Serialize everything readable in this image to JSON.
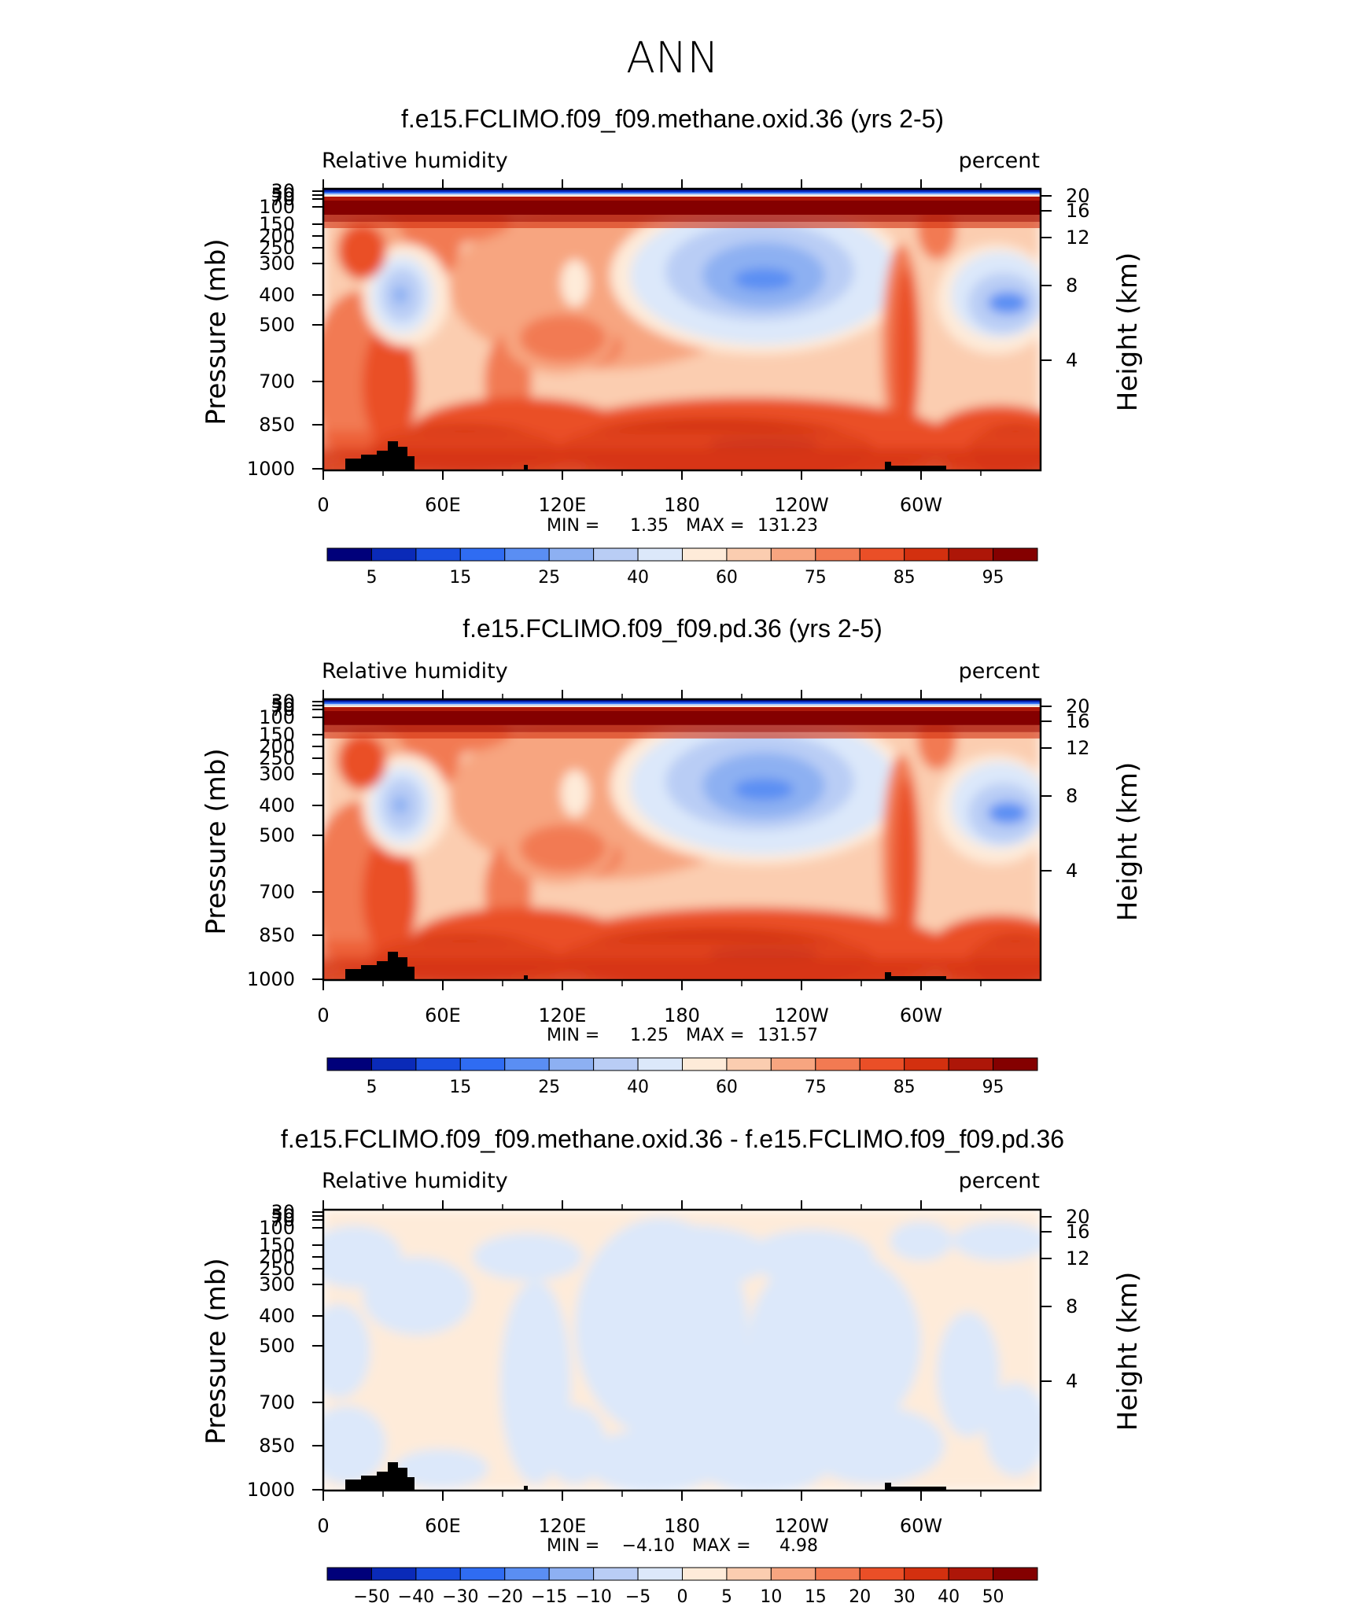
{
  "main_title": "ANN",
  "chart_data": [
    {
      "type": "contour",
      "title": "f.e15.FCLIMO.f09_f09.methane.oxid.36 (yrs 2-5)",
      "variable": "Relative humidity",
      "units": "percent",
      "ylabel": "Pressure (mb)",
      "y2label": "Height (km)",
      "xticks": [
        "0",
        "60E",
        "120E",
        "180",
        "120W",
        "60W"
      ],
      "yticks": [
        "30",
        "50",
        "70",
        "100",
        "150",
        "200",
        "250",
        "300",
        "400",
        "500",
        "700",
        "850",
        "1000"
      ],
      "y2ticks": [
        "20",
        "16",
        "12",
        "8",
        "4"
      ],
      "stats": {
        "min_label": "MIN =",
        "min": "1.35",
        "max_label": "MAX =",
        "max": "131.23"
      },
      "colorbar_labels": [
        "5",
        "15",
        "25",
        "40",
        "60",
        "75",
        "85",
        "95"
      ]
    },
    {
      "type": "contour",
      "title": "f.e15.FCLIMO.f09_f09.pd.36 (yrs 2-5)",
      "variable": "Relative humidity",
      "units": "percent",
      "ylabel": "Pressure (mb)",
      "y2label": "Height (km)",
      "xticks": [
        "0",
        "60E",
        "120E",
        "180",
        "120W",
        "60W"
      ],
      "yticks": [
        "30",
        "50",
        "70",
        "100",
        "150",
        "200",
        "250",
        "300",
        "400",
        "500",
        "700",
        "850",
        "1000"
      ],
      "y2ticks": [
        "20",
        "16",
        "12",
        "8",
        "4"
      ],
      "stats": {
        "min_label": "MIN =",
        "min": "1.25",
        "max_label": "MAX =",
        "max": "131.57"
      },
      "colorbar_labels": [
        "5",
        "15",
        "25",
        "40",
        "60",
        "75",
        "85",
        "95"
      ]
    },
    {
      "type": "contour",
      "title": "f.e15.FCLIMO.f09_f09.methane.oxid.36 - f.e15.FCLIMO.f09_f09.pd.36",
      "variable": "Relative humidity",
      "units": "percent",
      "ylabel": "Pressure (mb)",
      "y2label": "Height (km)",
      "xticks": [
        "0",
        "60E",
        "120E",
        "180",
        "120W",
        "60W"
      ],
      "yticks": [
        "30",
        "50",
        "70",
        "100",
        "150",
        "200",
        "250",
        "300",
        "400",
        "500",
        "700",
        "850",
        "1000"
      ],
      "y2ticks": [
        "20",
        "16",
        "12",
        "8",
        "4"
      ],
      "stats": {
        "min_label": "MIN =",
        "min": "−4.10",
        "max_label": "MAX =",
        "max": "4.98"
      },
      "colorbar_labels": [
        "−50",
        "−40",
        "−30",
        "−20",
        "−15",
        "−10",
        "−5",
        "0",
        "5",
        "10",
        "15",
        "20",
        "30",
        "40",
        "50"
      ]
    }
  ],
  "colors": {
    "palette": [
      "#00007a",
      "#0a2ab8",
      "#1a4fe0",
      "#2f6cf2",
      "#5a8ef3",
      "#8db0f2",
      "#b9cdf5",
      "#dce8fa",
      "#feebd9",
      "#fbcdb0",
      "#f7a580",
      "#f27a52",
      "#ea4f27",
      "#d3300f",
      "#ad1608",
      "#840000"
    ],
    "terrain": "#000000",
    "frame": "#000000"
  }
}
